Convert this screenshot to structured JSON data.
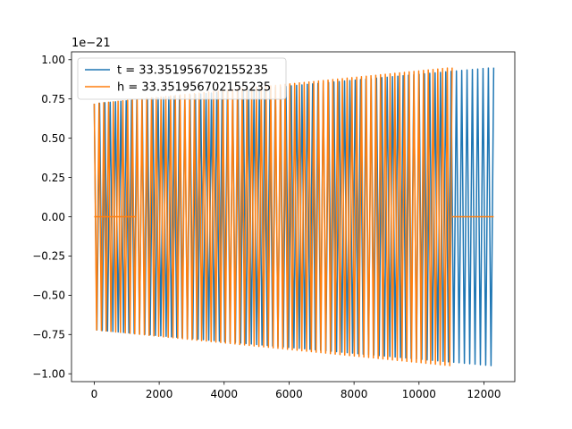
{
  "chart_data": {
    "type": "line",
    "title": "",
    "xlabel": "",
    "ylabel": "",
    "y_offset_label": "1e−21",
    "xlim": [
      -700,
      12950
    ],
    "ylim": [
      -1.05,
      1.05
    ],
    "x_ticks": [
      0,
      2000,
      4000,
      6000,
      8000,
      10000,
      12000
    ],
    "x_tick_labels": [
      "0",
      "2000",
      "4000",
      "6000",
      "8000",
      "10000",
      "12000"
    ],
    "y_ticks": [
      1.0,
      0.75,
      0.5,
      0.25,
      0.0,
      -0.25,
      -0.5,
      -0.75,
      -1.0
    ],
    "y_tick_labels": [
      "1.00",
      "0.75",
      "0.50",
      "0.25",
      "0.00",
      "−0.25",
      "−0.50",
      "−0.75",
      "−1.00"
    ],
    "grid": false,
    "legend_position": "top-left",
    "series": [
      {
        "name": "t = 33.351956702155235",
        "color": "#1f77b4",
        "segments": [
          {
            "x_start": 0,
            "x_end": 12300,
            "amp_start": 0.72,
            "amp_end": 0.95,
            "cycles": 75
          }
        ]
      },
      {
        "name": "h = 33.351956702155235",
        "color": "#ff7f0e",
        "segments": [
          {
            "x_start": 0,
            "x_end": 11020,
            "amp_start": 0.72,
            "amp_end": 0.95,
            "cycles": 75
          }
        ],
        "flat_segments": [
          {
            "x_start": 0,
            "x_end": 1300,
            "y": 0.0
          },
          {
            "x_start": 11020,
            "x_end": 12300,
            "y": 0.0
          }
        ]
      }
    ]
  }
}
